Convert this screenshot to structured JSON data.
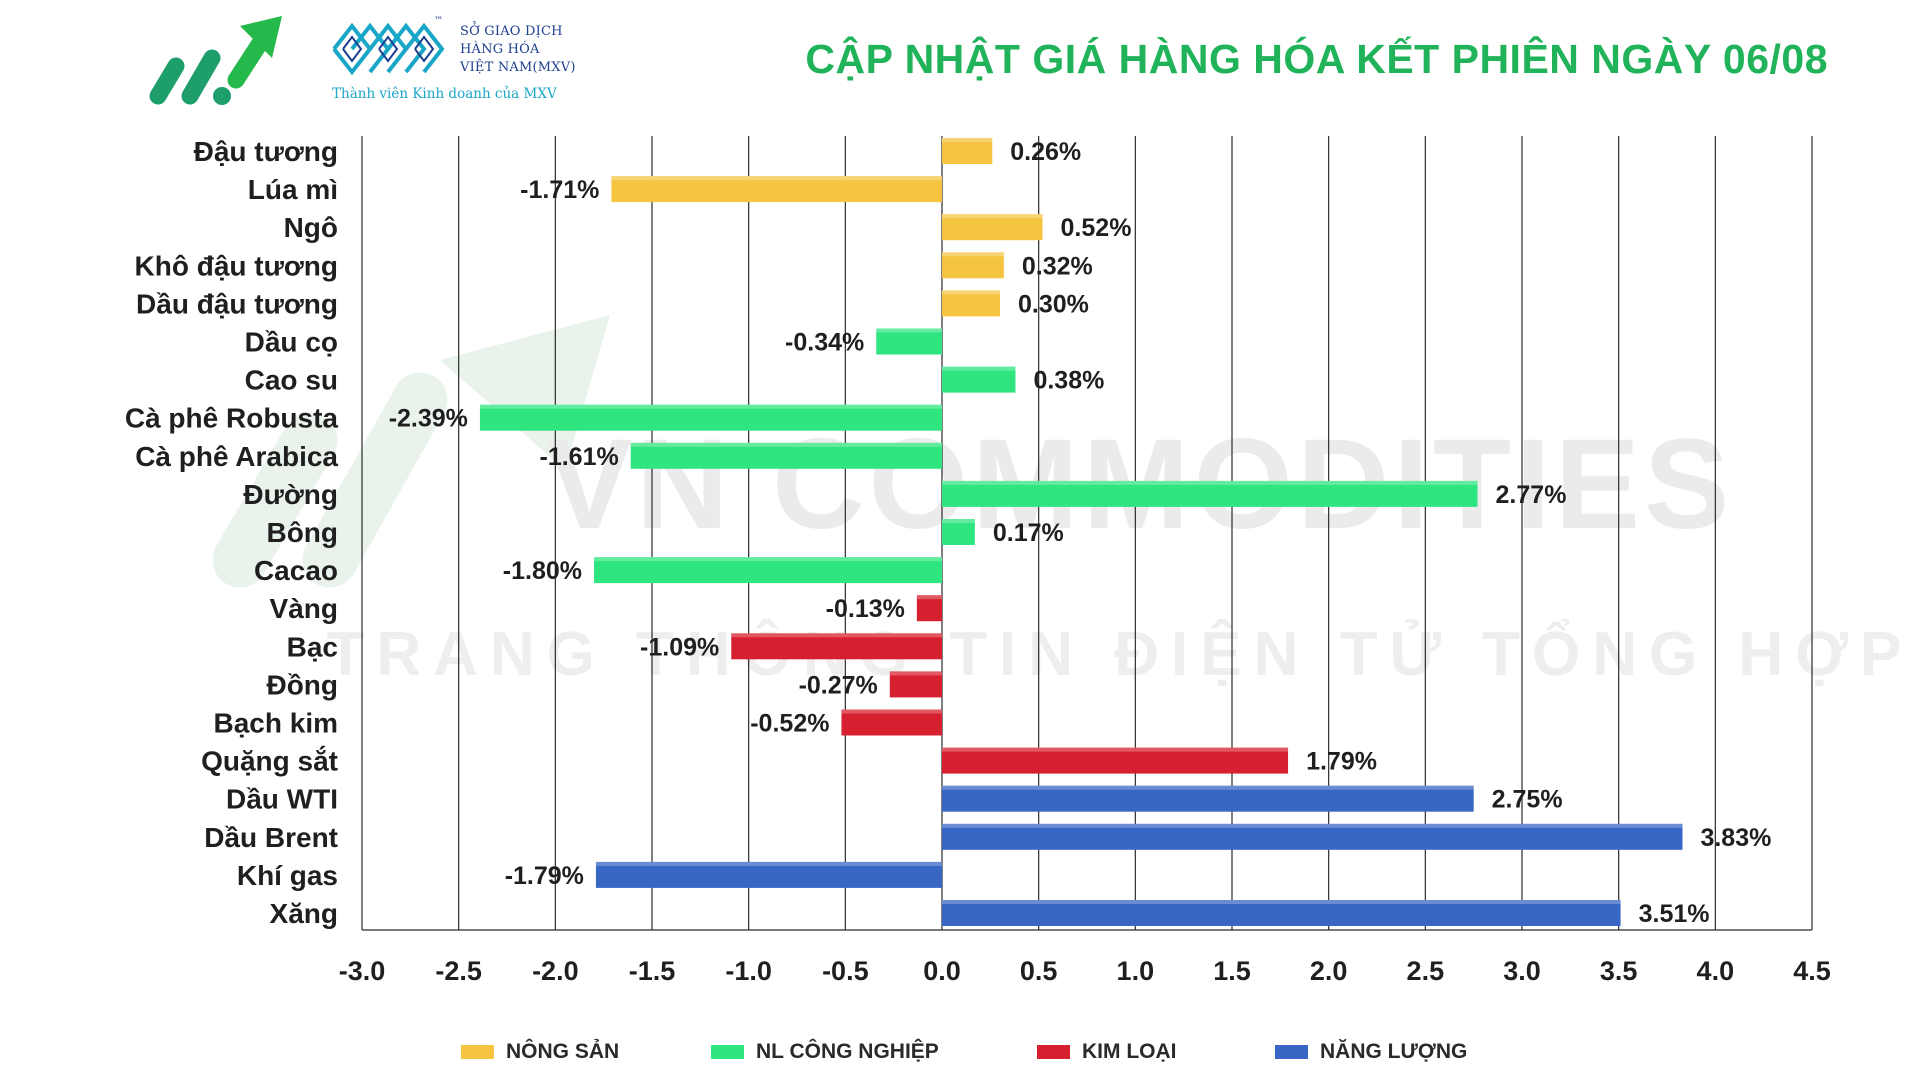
{
  "header": {
    "title": "CẬP NHẬT GIÁ HÀNG HÓA KẾT PHIÊN NGÀY 06/08",
    "logo_lines": [
      "SỞ GIAO DỊCH",
      "HÀNG HÓA",
      "VIỆT NAM(MXV)"
    ],
    "logo_tm": "™",
    "logo_subtitle": "Thành viên Kinh doanh của MXV"
  },
  "watermark": {
    "line1": "VN COMMODITIES",
    "line2": "TRANG THÔNG TIN ĐIỆN TỬ TỔNG HỢP"
  },
  "colors": {
    "nong_san": "#f5c542",
    "nl_cong_nghiep": "#2fe57f",
    "kim_loai": "#d7202f",
    "nang_luong": "#3866c4",
    "title": "#21b35a"
  },
  "chart_data": {
    "type": "bar",
    "orientation": "horizontal",
    "title": "CẬP NHẬT GIÁ HÀNG HÓA KẾT PHIÊN NGÀY 06/08",
    "xlabel": "",
    "ylabel": "",
    "xlim": [
      -3.0,
      4.5
    ],
    "x_ticks": [
      -3.0,
      -2.5,
      -2.0,
      -1.5,
      -1.0,
      -0.5,
      0.0,
      0.5,
      1.0,
      1.5,
      2.0,
      2.5,
      3.0,
      3.5,
      4.0,
      4.5
    ],
    "tick_labels": [
      "-3.0",
      "-2.5",
      "-2.0",
      "-1.5",
      "-1.0",
      "-0.5",
      "0.0",
      "0.5",
      "1.0",
      "1.5",
      "2.0",
      "2.5",
      "3.0",
      "3.5",
      "4.0",
      "4.5"
    ],
    "grid": "vertical",
    "legend_position": "bottom",
    "legend": [
      {
        "name": "NÔNG SẢN",
        "color": "#f5c542"
      },
      {
        "name": "NL CÔNG NGHIỆP",
        "color": "#2fe57f"
      },
      {
        "name": "KIM LOẠI",
        "color": "#d7202f"
      },
      {
        "name": "NĂNG LƯỢNG",
        "color": "#3866c4"
      }
    ],
    "bars": [
      {
        "category": "Đậu tương",
        "value": 0.26,
        "label": "0.26%",
        "group": "NÔNG SẢN"
      },
      {
        "category": "Lúa mì",
        "value": -1.71,
        "label": "-1.71%",
        "group": "NÔNG SẢN"
      },
      {
        "category": "Ngô",
        "value": 0.52,
        "label": "0.52%",
        "group": "NÔNG SẢN"
      },
      {
        "category": "Khô đậu tương",
        "value": 0.32,
        "label": "0.32%",
        "group": "NÔNG SẢN"
      },
      {
        "category": "Dầu đậu tương",
        "value": 0.3,
        "label": "0.30%",
        "group": "NÔNG SẢN"
      },
      {
        "category": "Dầu cọ",
        "value": -0.34,
        "label": "-0.34%",
        "group": "NL CÔNG NGHIỆP"
      },
      {
        "category": "Cao su",
        "value": 0.38,
        "label": "0.38%",
        "group": "NL CÔNG NGHIỆP"
      },
      {
        "category": "Cà phê Robusta",
        "value": -2.39,
        "label": "-2.39%",
        "group": "NL CÔNG NGHIỆP"
      },
      {
        "category": "Cà phê Arabica",
        "value": -1.61,
        "label": "-1.61%",
        "group": "NL CÔNG NGHIỆP"
      },
      {
        "category": "Đường",
        "value": 2.77,
        "label": "2.77%",
        "group": "NL CÔNG NGHIỆP"
      },
      {
        "category": "Bông",
        "value": 0.17,
        "label": "0.17%",
        "group": "NL CÔNG NGHIỆP"
      },
      {
        "category": "Cacao",
        "value": -1.8,
        "label": "-1.80%",
        "group": "NL CÔNG NGHIỆP"
      },
      {
        "category": "Vàng",
        "value": -0.13,
        "label": "-0.13%",
        "group": "KIM LOẠI"
      },
      {
        "category": "Bạc",
        "value": -1.09,
        "label": "-1.09%",
        "group": "KIM LOẠI"
      },
      {
        "category": "Đồng",
        "value": -0.27,
        "label": "-0.27%",
        "group": "KIM LOẠI"
      },
      {
        "category": "Bạch kim",
        "value": -0.52,
        "label": "-0.52%",
        "group": "KIM LOẠI"
      },
      {
        "category": "Quặng sắt",
        "value": 1.79,
        "label": "1.79%",
        "group": "KIM LOẠI"
      },
      {
        "category": "Dầu WTI",
        "value": 2.75,
        "label": "2.75%",
        "group": "NĂNG LƯỢNG"
      },
      {
        "category": "Dầu Brent",
        "value": 3.83,
        "label": "3.83%",
        "group": "NĂNG LƯỢNG"
      },
      {
        "category": "Khí gas",
        "value": -1.79,
        "label": "-1.79%",
        "group": "NĂNG LƯỢNG"
      },
      {
        "category": "Xăng",
        "value": 3.51,
        "label": "3.51%",
        "group": "NĂNG LƯỢNG"
      }
    ]
  }
}
